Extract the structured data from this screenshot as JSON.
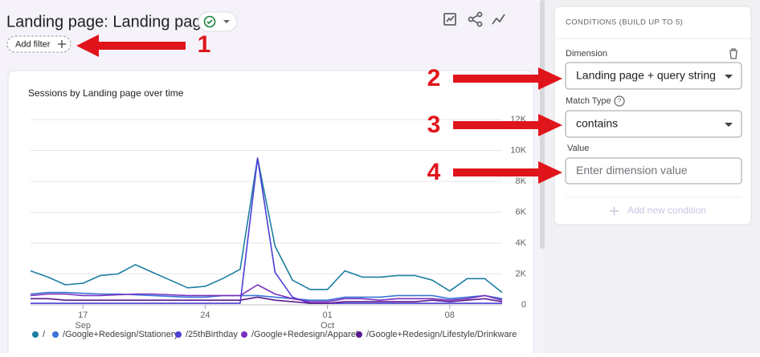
{
  "header": {
    "title": "Landing page: Landing page",
    "add_filter": "Add filter"
  },
  "annotations": [
    "1",
    "2",
    "3",
    "4"
  ],
  "chart": {
    "type": "line",
    "title": "Sessions by Landing page over time",
    "categories": [
      null,
      null,
      null,
      "17",
      null,
      null,
      null,
      null,
      null,
      null,
      "24",
      null,
      null,
      null,
      null,
      null,
      null,
      "01",
      null,
      null,
      null,
      null,
      null,
      null,
      "08",
      null,
      null,
      null
    ],
    "category_months": [
      null,
      null,
      null,
      "Sep",
      null,
      null,
      null,
      null,
      null,
      null,
      null,
      null,
      null,
      null,
      null,
      null,
      null,
      "Oct",
      null,
      null,
      null,
      null,
      null,
      null,
      null,
      null,
      null,
      null
    ],
    "ylim": [
      0,
      12000
    ],
    "yticks": [
      0,
      {
        "value": 2000,
        "label": "2K"
      },
      {
        "value": 4000,
        "label": "4K"
      },
      {
        "value": 6000,
        "label": "6K"
      },
      {
        "value": 8000,
        "label": "8K"
      },
      {
        "value": 10000,
        "label": "10K"
      },
      {
        "value": 12000,
        "label": "12K"
      }
    ],
    "grid": true,
    "series": [
      {
        "name": "/",
        "color": "#1d7fa1",
        "values": [
          2200,
          1800,
          1300,
          1400,
          1900,
          2000,
          2600,
          2100,
          1600,
          1100,
          1200,
          1700,
          2300,
          9500,
          3800,
          1600,
          1000,
          1000,
          2200,
          1800,
          1800,
          1900,
          1900,
          1600,
          900,
          1700,
          1700,
          800
        ]
      },
      {
        "name": "/Google+Redesign/Stationery",
        "color": "#3a74d6",
        "values": [
          700,
          800,
          800,
          750,
          700,
          700,
          650,
          600,
          550,
          500,
          500,
          600,
          600,
          600,
          500,
          400,
          300,
          300,
          500,
          500,
          500,
          600,
          600,
          600,
          400,
          500,
          600,
          400
        ]
      },
      {
        "name": "/25thBirthday",
        "color": "#4b3fd6",
        "values": [
          100,
          100,
          100,
          100,
          100,
          100,
          100,
          100,
          100,
          100,
          100,
          100,
          100,
          9500,
          2100,
          500,
          100,
          100,
          100,
          100,
          100,
          100,
          100,
          100,
          100,
          100,
          100,
          100
        ]
      },
      {
        "name": "/Google+Redesign/Apparel",
        "color": "#7a2fc0",
        "values": [
          600,
          700,
          700,
          600,
          600,
          650,
          700,
          700,
          650,
          600,
          600,
          600,
          600,
          1300,
          700,
          400,
          200,
          200,
          400,
          400,
          300,
          400,
          400,
          400,
          300,
          400,
          600,
          300
        ]
      },
      {
        "name": "/Google+Redesign/Lifestyle/Drinkware",
        "color": "#5a1a8e",
        "values": [
          400,
          400,
          300,
          300,
          300,
          300,
          300,
          300,
          300,
          300,
          300,
          300,
          300,
          500,
          300,
          200,
          100,
          100,
          200,
          200,
          200,
          200,
          200,
          300,
          200,
          300,
          400,
          200
        ]
      }
    ]
  },
  "panel": {
    "title": "CONDITIONS (BUILD UP TO 5)",
    "dimension_label": "Dimension",
    "dimension_value": "Landing page + query string",
    "match_type_label": "Match Type",
    "match_type_value": "contains",
    "value_label": "Value",
    "value_placeholder": "Enter dimension value",
    "add_condition": "Add new condition"
  }
}
